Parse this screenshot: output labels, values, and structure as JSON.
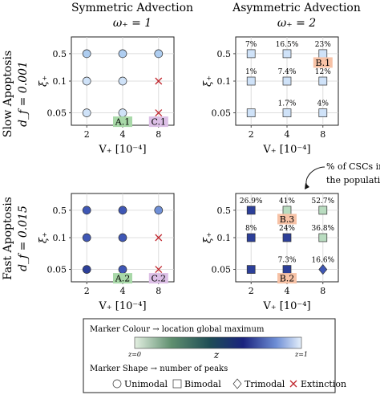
{
  "columns": {
    "left": {
      "title": "Symmetric Advection",
      "omega": "ω₊ = 1"
    },
    "right": {
      "title": "Asymmetric Advection",
      "omega": "ω₊ = 2"
    }
  },
  "rows": {
    "top": {
      "title": "Slow Apoptosis",
      "df": "d_f = 0.001"
    },
    "bottom": {
      "title": "Fast Apoptosis",
      "df": "d_f = 0.015"
    }
  },
  "axes": {
    "x_ticks": [
      "2",
      "4",
      "8"
    ],
    "y_ticks": [
      "0.5",
      "0.1",
      "0.05"
    ],
    "x_label": "V₊ [10⁻⁴]",
    "y_label": "ξ₊"
  },
  "colors": {
    "cscale_dark": "#1a237e",
    "cscale_mid": "#2e5e4e",
    "cscale_light": "#d7e6f6",
    "extinction": "#c0262d",
    "label_green": "#a8d8a8",
    "label_purple": "#dcbfe6",
    "label_orange": "#f7c2a6"
  },
  "panels": [
    {
      "id": "sym-slow",
      "markers": [
        {
          "xi": 0,
          "yi": 0,
          "shape": "circle",
          "color": "#aecdf0"
        },
        {
          "xi": 1,
          "yi": 0,
          "shape": "circle",
          "color": "#aecdf0"
        },
        {
          "xi": 2,
          "yi": 0,
          "shape": "circle",
          "color": "#aecdf0"
        },
        {
          "xi": 0,
          "yi": 1,
          "shape": "circle",
          "color": "#cfe2f8"
        },
        {
          "xi": 1,
          "yi": 1,
          "shape": "circle",
          "color": "#cfe2f8"
        },
        {
          "xi": 2,
          "yi": 1,
          "shape": "cross",
          "color": "#c0262d"
        },
        {
          "xi": 0,
          "yi": 2,
          "shape": "circle",
          "color": "#cfe2f8"
        },
        {
          "xi": 1,
          "yi": 2,
          "shape": "circle",
          "color": "#cfe2f8"
        },
        {
          "xi": 2,
          "yi": 2,
          "shape": "cross",
          "color": "#c0262d"
        }
      ],
      "labels": [
        {
          "text": "A.1",
          "xi": 1,
          "yi": 2,
          "bg": "#a8d8a8"
        },
        {
          "text": "C.1",
          "xi": 2,
          "yi": 2,
          "bg": "#dcbfe6"
        }
      ],
      "percents": []
    },
    {
      "id": "asym-slow",
      "markers": [
        {
          "xi": 0,
          "yi": 0,
          "shape": "square",
          "color": "#cfe2f8"
        },
        {
          "xi": 1,
          "yi": 0,
          "shape": "square",
          "color": "#cfe2f8"
        },
        {
          "xi": 2,
          "yi": 0,
          "shape": "square",
          "color": "#cfe2f8"
        },
        {
          "xi": 0,
          "yi": 1,
          "shape": "square",
          "color": "#cfe2f8"
        },
        {
          "xi": 1,
          "yi": 1,
          "shape": "square",
          "color": "#cfe2f8"
        },
        {
          "xi": 2,
          "yi": 1,
          "shape": "square",
          "color": "#cfe2f8"
        },
        {
          "xi": 0,
          "yi": 2,
          "shape": "square",
          "color": "#cfe2f8"
        },
        {
          "xi": 1,
          "yi": 2,
          "shape": "square",
          "color": "#cfe2f8"
        },
        {
          "xi": 2,
          "yi": 2,
          "shape": "square",
          "color": "#cfe2f8"
        }
      ],
      "labels": [
        {
          "text": "B.1",
          "xi": 2,
          "yi": 0,
          "bg": "#f7c2a6"
        }
      ],
      "percents": [
        {
          "text": "7%",
          "xi": 0,
          "yi": 0
        },
        {
          "text": "16.5%",
          "xi": 1,
          "yi": 0
        },
        {
          "text": "23%",
          "xi": 2,
          "yi": 0
        },
        {
          "text": "1%",
          "xi": 0,
          "yi": 1
        },
        {
          "text": "7.4%",
          "xi": 1,
          "yi": 1
        },
        {
          "text": "12%",
          "xi": 2,
          "yi": 1
        },
        {
          "text": "1.7%",
          "xi": 1,
          "yi": 2
        },
        {
          "text": "4%",
          "xi": 2,
          "yi": 2
        }
      ]
    },
    {
      "id": "sym-fast",
      "markers": [
        {
          "xi": 0,
          "yi": 0,
          "shape": "circle",
          "color": "#3f57b5"
        },
        {
          "xi": 1,
          "yi": 0,
          "shape": "circle",
          "color": "#3f57b5"
        },
        {
          "xi": 2,
          "yi": 0,
          "shape": "circle",
          "color": "#6f8fd6"
        },
        {
          "xi": 0,
          "yi": 1,
          "shape": "circle",
          "color": "#3f57b5"
        },
        {
          "xi": 1,
          "yi": 1,
          "shape": "circle",
          "color": "#3f57b5"
        },
        {
          "xi": 2,
          "yi": 1,
          "shape": "cross",
          "color": "#c0262d"
        },
        {
          "xi": 0,
          "yi": 2,
          "shape": "circle",
          "color": "#2c3f99"
        },
        {
          "xi": 1,
          "yi": 2,
          "shape": "circle",
          "color": "#3f57b5"
        },
        {
          "xi": 2,
          "yi": 2,
          "shape": "cross",
          "color": "#c0262d"
        }
      ],
      "labels": [
        {
          "text": "A.2",
          "xi": 1,
          "yi": 2,
          "bg": "#a8d8a8"
        },
        {
          "text": "C.2",
          "xi": 2,
          "yi": 2,
          "bg": "#dcbfe6"
        }
      ],
      "percents": []
    },
    {
      "id": "asym-fast",
      "markers": [
        {
          "xi": 0,
          "yi": 0,
          "shape": "square",
          "color": "#2c3f99"
        },
        {
          "xi": 1,
          "yi": 0,
          "shape": "square",
          "color": "#b9dcc0"
        },
        {
          "xi": 2,
          "yi": 0,
          "shape": "square",
          "color": "#b9dcc0"
        },
        {
          "xi": 0,
          "yi": 1,
          "shape": "square",
          "color": "#2c3f99"
        },
        {
          "xi": 1,
          "yi": 1,
          "shape": "square",
          "color": "#2c3f99"
        },
        {
          "xi": 2,
          "yi": 1,
          "shape": "square",
          "color": "#b9dcc0"
        },
        {
          "xi": 0,
          "yi": 2,
          "shape": "square",
          "color": "#2c3f99"
        },
        {
          "xi": 1,
          "yi": 2,
          "shape": "square",
          "color": "#2c3f99"
        },
        {
          "xi": 2,
          "yi": 2,
          "shape": "diamond",
          "color": "#3f57b5"
        }
      ],
      "labels": [
        {
          "text": "B.3",
          "xi": 1,
          "yi": 0,
          "bg": "#f7c2a6"
        },
        {
          "text": "B.2",
          "xi": 1,
          "yi": 2,
          "bg": "#f7c2a6"
        }
      ],
      "percents": [
        {
          "text": "26.9%",
          "xi": 0,
          "yi": 0
        },
        {
          "text": "41%",
          "xi": 1,
          "yi": 0
        },
        {
          "text": "52.7%",
          "xi": 2,
          "yi": 0
        },
        {
          "text": "8%",
          "xi": 0,
          "yi": 1
        },
        {
          "text": "24%",
          "xi": 1,
          "yi": 1
        },
        {
          "text": "36.8%",
          "xi": 2,
          "yi": 1
        },
        {
          "text": "7.3%",
          "xi": 1,
          "yi": 2
        },
        {
          "text": "16.6%",
          "xi": 2,
          "yi": 2
        }
      ]
    }
  ],
  "annotation": {
    "line1": "% of CSCs in",
    "line2": "the population"
  },
  "legend": {
    "colour_title": "Marker Colour → location global maximum",
    "cbar_left": "z=0",
    "cbar_right": "z=1",
    "cbar_mid": "z",
    "shape_title": "Marker Shape → number of peaks",
    "shapes": [
      {
        "name": "Unimodal",
        "shape": "circle"
      },
      {
        "name": "Bimodal",
        "shape": "square"
      },
      {
        "name": "Trimodal",
        "shape": "diamond"
      },
      {
        "name": "Extinction",
        "shape": "cross"
      }
    ]
  }
}
